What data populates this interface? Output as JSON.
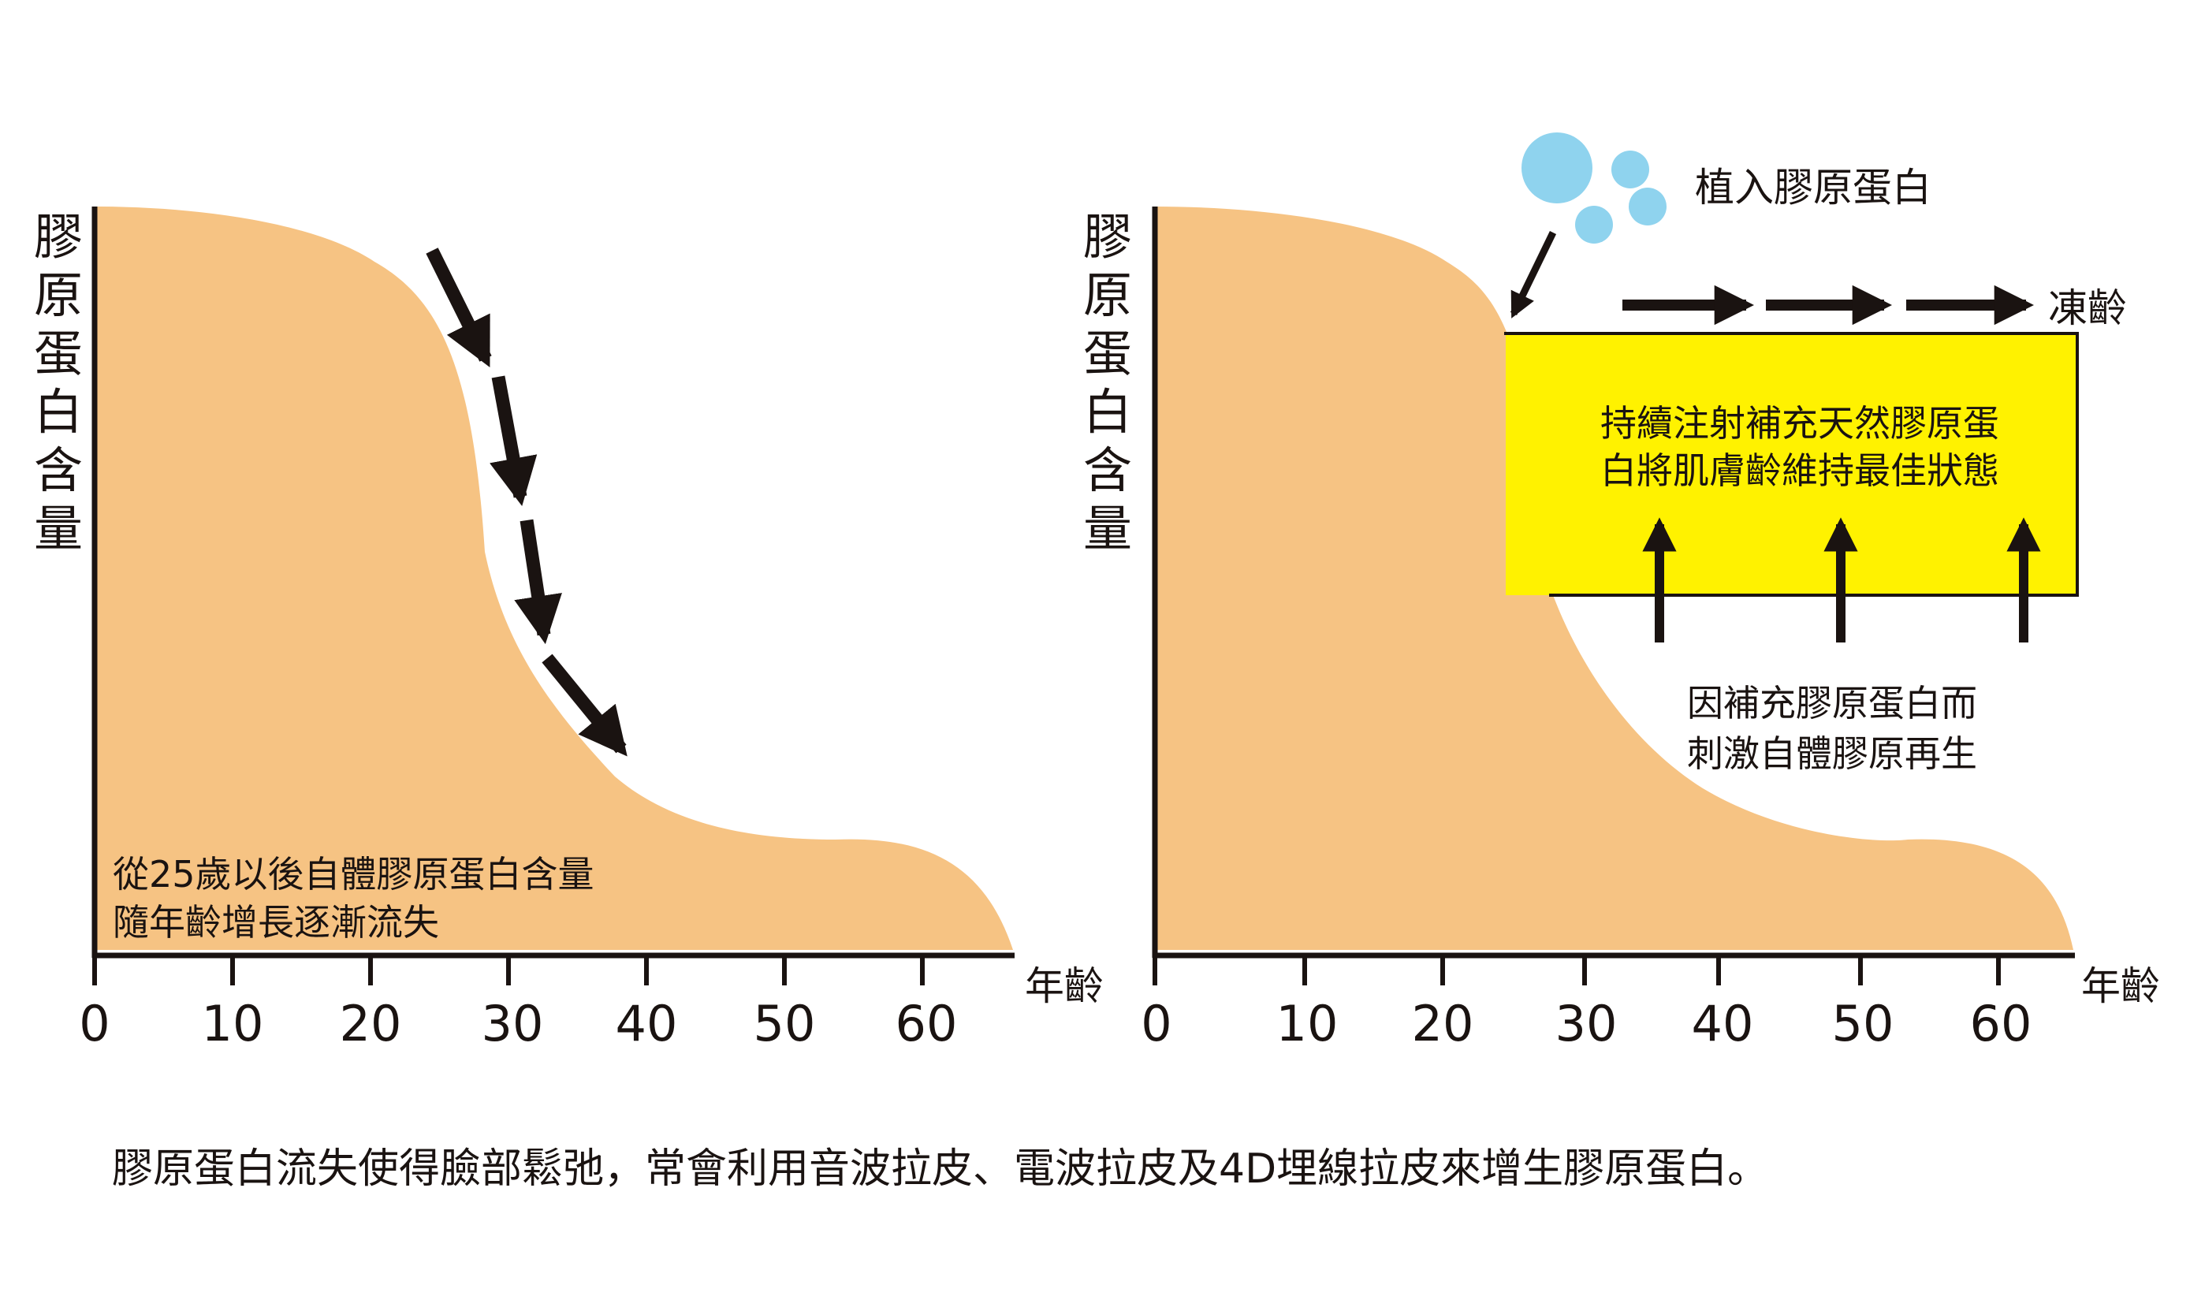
{
  "left_panel": {
    "y_axis_label_chars": [
      "膠",
      "原",
      "蛋",
      "白",
      "含",
      "量"
    ],
    "x_axis_label": "年齡",
    "x_ticks": [
      "0",
      "10",
      "20",
      "30",
      "40",
      "50",
      "60"
    ],
    "note_lines": [
      "從25歲以後自體膠原蛋白含量",
      "隨年齡增長逐漸流失"
    ]
  },
  "right_panel": {
    "y_axis_label_chars": [
      "膠",
      "原",
      "蛋",
      "白",
      "含",
      "量"
    ],
    "x_axis_label": "年齡",
    "x_ticks": [
      "0",
      "10",
      "20",
      "30",
      "40",
      "50",
      "60"
    ],
    "implant_label": "植入膠原蛋白",
    "frozen_age_label": "凍齡",
    "box_lines": [
      "持續注射補充天然膠原蛋",
      "白將肌膚齡維持最佳狀態"
    ],
    "stimulate_lines": [
      "因補充膠原蛋白而",
      "刺激自體膠原再生"
    ]
  },
  "caption": "膠原蛋白流失使得臉部鬆弛，常會利用音波拉皮、電波拉皮及4D埋線拉皮來增生膠原蛋白。",
  "colors": {
    "collagen_fill": "#f6c383",
    "frozen_box_fill": "#fff200",
    "bubble_fill": "#8fd3ee",
    "ink": "#1a1311"
  }
}
